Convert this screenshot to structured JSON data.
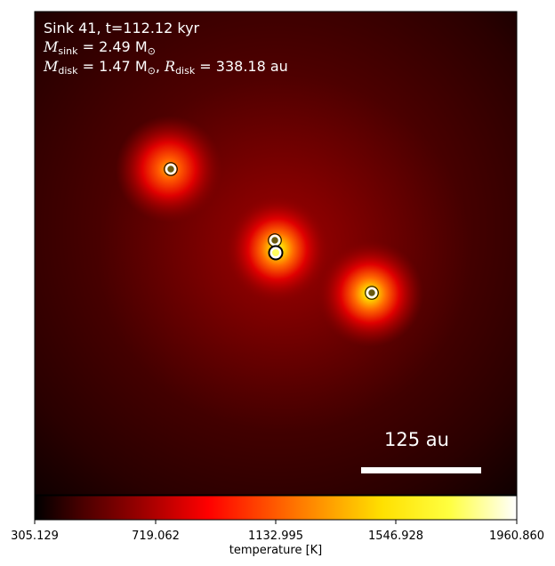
{
  "annotation": {
    "line1": "Sink 41, t=112.12 kyr",
    "sink_mass_label": "M",
    "sink_mass_sub": "sink",
    "sink_mass_value": " = 2.49 M",
    "sink_mass_unit_sub": "⊙",
    "disk_mass_label": "M",
    "disk_mass_sub": "disk",
    "disk_mass_value": " = 1.47 M",
    "disk_mass_unit_sub": "⊙",
    "disk_radius_sep": ", ",
    "disk_radius_label": "R",
    "disk_radius_sub": "disk",
    "disk_radius_value": " = 338.18 au"
  },
  "scale_bar": {
    "label": "125 au"
  },
  "colorbar": {
    "label": "temperature [K]",
    "ticks": [
      "305.129",
      "719.062",
      "1132.995",
      "1546.928",
      "1960.860"
    ],
    "colormap": "hot",
    "stops": [
      "#000000",
      "#4a0000",
      "#a00000",
      "#ff0000",
      "#ff7f00",
      "#ffff00",
      "#ffffff"
    ]
  },
  "map": {
    "background_color": "#3a0000",
    "sinks": [
      {
        "name": "sink-upper-left",
        "size": "medium"
      },
      {
        "name": "sink-center-upper",
        "size": "small"
      },
      {
        "name": "sink-center-main",
        "size": "large"
      },
      {
        "name": "sink-lower-right",
        "size": "medium"
      }
    ]
  }
}
